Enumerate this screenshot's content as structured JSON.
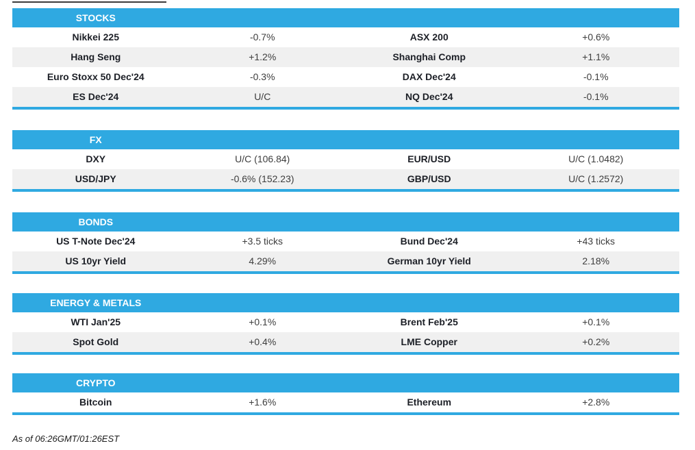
{
  "colors": {
    "accent_blue": "#2FA9E1",
    "stripe_gray": "#F0F0F0",
    "top_line": "#3A3A3A"
  },
  "sections": [
    {
      "title": "STOCKS",
      "rows": [
        [
          "Nikkei 225",
          "-0.7%",
          "ASX 200",
          "+0.6%"
        ],
        [
          "Hang Seng",
          "+1.2%",
          "Shanghai Comp",
          "+1.1%"
        ],
        [
          "Euro Stoxx 50 Dec'24",
          "-0.3%",
          "DAX Dec'24",
          "-0.1%"
        ],
        [
          "ES Dec'24",
          "U/C",
          "NQ Dec'24",
          "-0.1%"
        ]
      ]
    },
    {
      "title": "FX",
      "rows": [
        [
          "DXY",
          "U/C (106.84)",
          "EUR/USD",
          "U/C (1.0482)"
        ],
        [
          "USD/JPY",
          "-0.6% (152.23)",
          "GBP/USD",
          "U/C (1.2572)"
        ]
      ]
    },
    {
      "title": "BONDS",
      "rows": [
        [
          "US T-Note Dec'24",
          "+3.5 ticks",
          "Bund Dec'24",
          "+43 ticks"
        ],
        [
          "US 10yr Yield",
          "4.29%",
          "German 10yr Yield",
          "2.18%"
        ]
      ]
    },
    {
      "title": "ENERGY & METALS",
      "rows": [
        [
          "WTI Jan'25",
          "+0.1%",
          "Brent Feb'25",
          "+0.1%"
        ],
        [
          "Spot Gold",
          "+0.4%",
          "LME Copper",
          "+0.2%"
        ]
      ]
    },
    {
      "title": "CRYPTO",
      "rows": [
        [
          "Bitcoin",
          "+1.6%",
          "Ethereum",
          "+2.8%"
        ]
      ]
    }
  ],
  "footer": {
    "as_of": "As of 06:26GMT/01:26EST"
  }
}
